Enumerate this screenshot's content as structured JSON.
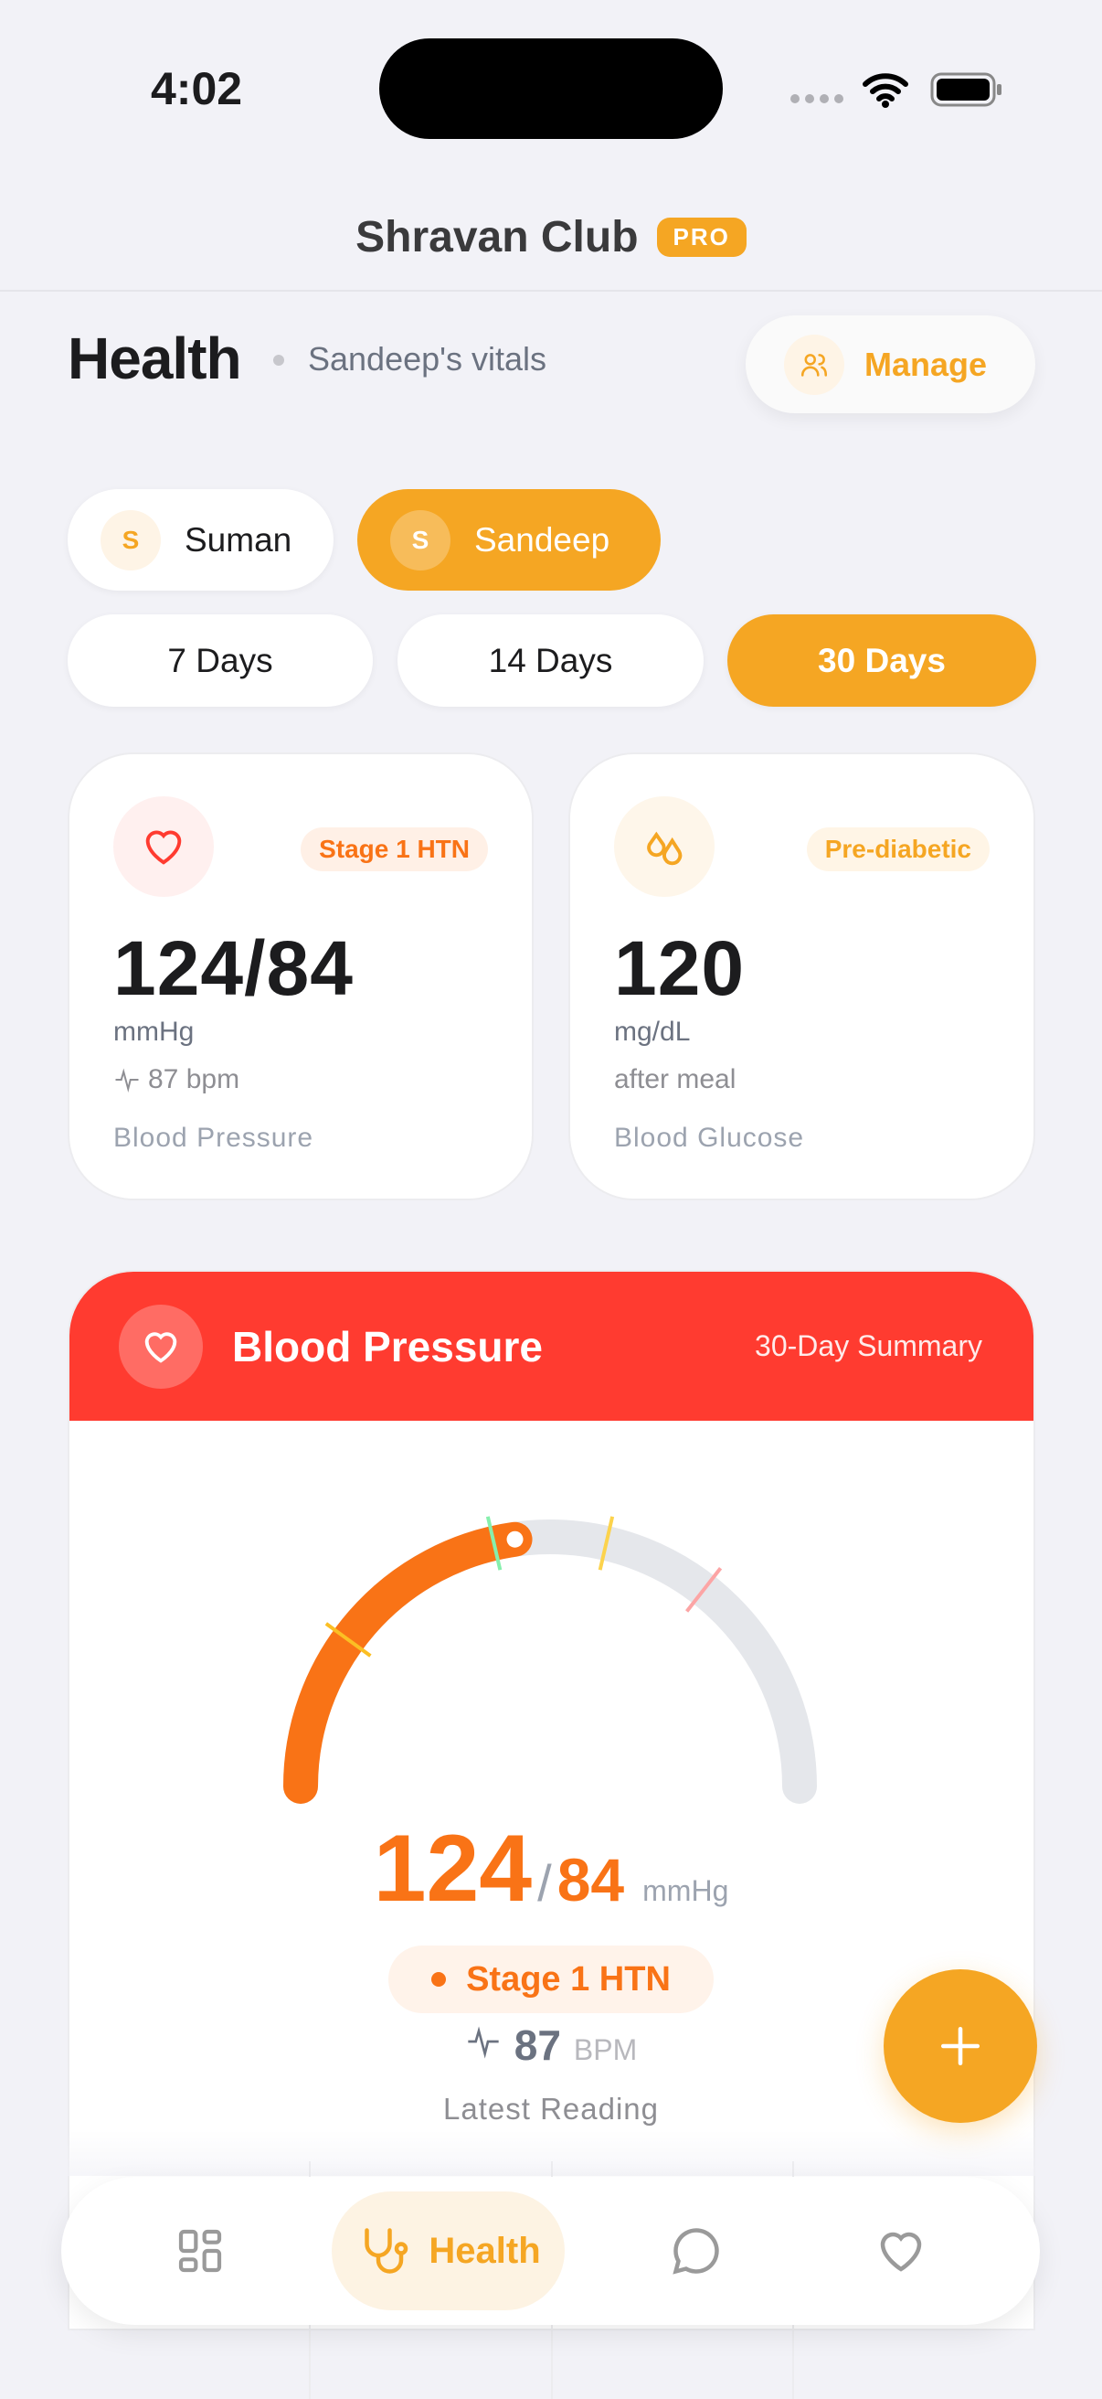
{
  "status_bar": {
    "time": "4:02"
  },
  "app": {
    "title": "Shravan Club",
    "badge": "PRO"
  },
  "header": {
    "title": "Health",
    "subtitle": "Sandeep's vitals",
    "manage_label": "Manage"
  },
  "members": [
    {
      "initial": "S",
      "name": "Suman",
      "selected": false
    },
    {
      "initial": "S",
      "name": "Sandeep",
      "selected": true
    }
  ],
  "ranges": [
    {
      "label": "7 Days",
      "selected": false
    },
    {
      "label": "14 Days",
      "selected": false
    },
    {
      "label": "30 Days",
      "selected": true
    }
  ],
  "cards": [
    {
      "badge": "Stage 1 HTN",
      "value": "124/84",
      "unit": "mmHg",
      "extra": "87 bpm",
      "label": "Blood Pressure"
    },
    {
      "badge": "Pre-diabetic",
      "value": "120",
      "unit": "mg/dL",
      "extra": "after meal",
      "label": "Blood Glucose"
    }
  ],
  "bp_section": {
    "title": "Blood Pressure",
    "summary": "30-Day Summary",
    "gauge_fraction": 0.455,
    "systolic": "124",
    "slash": "/",
    "diastolic": "84",
    "unit": "mmHg",
    "stage": "Stage 1 HTN",
    "pulse": "87",
    "pulse_unit": "BPM",
    "caption": "Latest Reading"
  },
  "colors": {
    "accent": "#f5a623",
    "bp_header": "#ff3b30",
    "reading": "#f97316"
  },
  "nav": {
    "active_label": "Health"
  }
}
